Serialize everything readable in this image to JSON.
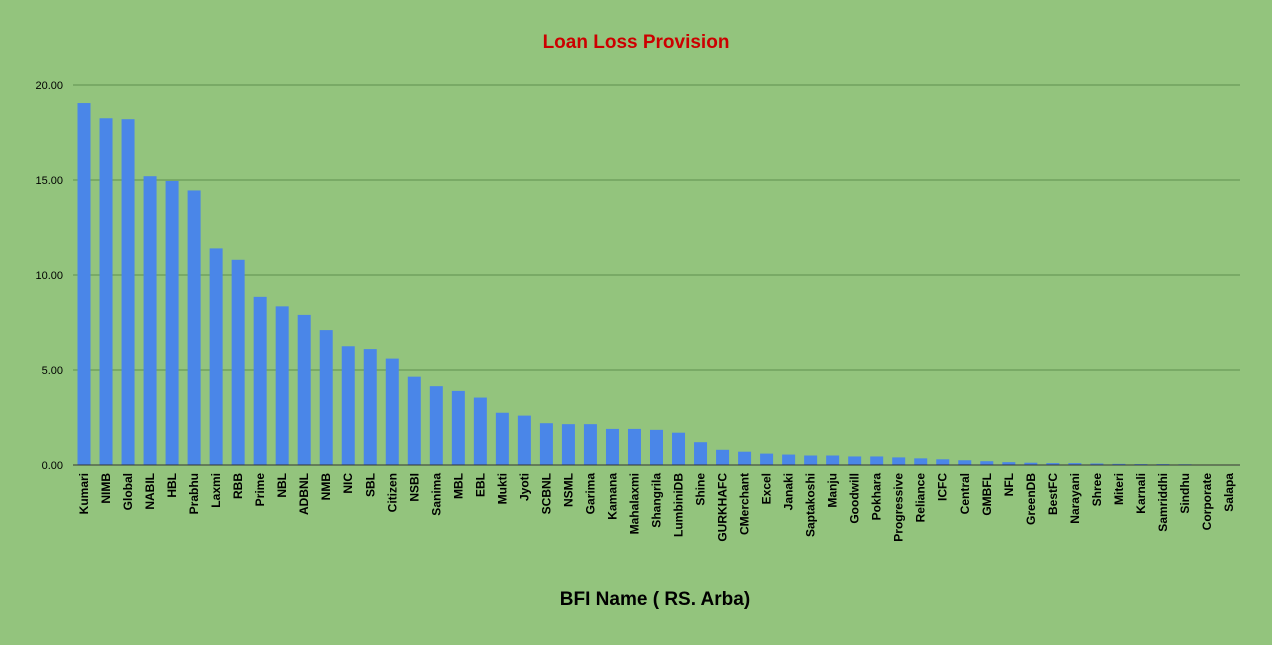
{
  "chart_data": {
    "type": "bar",
    "title": "Loan Loss Provision",
    "xlabel": "BFI Name ( RS. Arba)",
    "ylabel": "",
    "ylim": [
      0,
      20
    ],
    "yticks": [
      "0.00",
      "5.00",
      "10.00",
      "15.00",
      "20.00"
    ],
    "grid": true,
    "legend": "none",
    "categories": [
      "Kumari",
      "NIMB",
      "Global",
      "NABIL",
      "HBL",
      "Prabhu",
      "Laxmi",
      "RBB",
      "Prime",
      "NBL",
      "ADBNL",
      "NMB",
      "NIC",
      "SBL",
      "Citizen",
      "NSBI",
      "Sanima",
      "MBL",
      "EBL",
      "Mukti",
      "Jyoti",
      "SCBNL",
      "NSML",
      "Garima",
      "Kamana",
      "Mahalaxmi",
      "Shangrila",
      "LumbiniDB",
      "Shine",
      "GURKHAFC",
      "CMerchant",
      "Excel",
      "Janaki",
      "Saptakoshi",
      "Manju",
      "Goodwill",
      "Pokhara",
      "Progressive",
      "Reliance",
      "ICFC",
      "Central",
      "GMBFL",
      "NFL",
      "GreenDB",
      "BestFC",
      "Narayani",
      "Shree",
      "Miteri",
      "Karnali",
      "Samriddhi",
      "Sindhu",
      "Corporate",
      "Salapa"
    ],
    "values": [
      19.05,
      18.25,
      18.2,
      15.2,
      14.95,
      14.45,
      11.4,
      10.8,
      8.85,
      8.35,
      7.9,
      7.1,
      6.25,
      6.1,
      5.6,
      4.65,
      4.15,
      3.9,
      3.55,
      2.75,
      2.6,
      2.2,
      2.15,
      2.15,
      1.9,
      1.9,
      1.85,
      1.7,
      1.2,
      0.8,
      0.7,
      0.6,
      0.55,
      0.5,
      0.5,
      0.45,
      0.45,
      0.4,
      0.35,
      0.3,
      0.25,
      0.2,
      0.15,
      0.12,
      0.1,
      0.1,
      0.08,
      0.06,
      0.05,
      0.05,
      0.04,
      0.02,
      0.02
    ],
    "bar_color": "#4a86e8",
    "title_color": "#cc0000",
    "background_color": "#93c47d",
    "gridline_color": "#5f8f4e"
  }
}
